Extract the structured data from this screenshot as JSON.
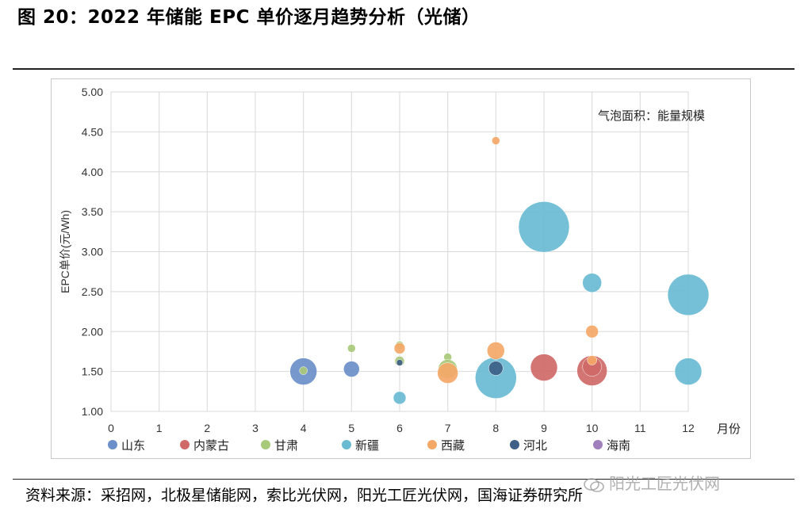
{
  "figure_title": "图 20：2022 年储能 EPC 单价逐月趋势分析（光储）",
  "source": "资料来源：采招网，北极星储能网，索比光伏网，阳光工匠光伏网，国海证券研究所",
  "watermark": "阳光工匠光伏网",
  "chart_data": {
    "type": "scatter",
    "subtype": "bubble",
    "xlabel": "月份",
    "ylabel": "EPC单价(元/Wh)",
    "annotation": "气泡面积：能量规模",
    "xlim": [
      0,
      12
    ],
    "ylim": [
      1.0,
      5.0
    ],
    "xticks": [
      "0",
      "1",
      "2",
      "3",
      "4",
      "5",
      "6",
      "7",
      "8",
      "9",
      "10",
      "11",
      "12"
    ],
    "yticks": [
      "1.00",
      "1.50",
      "2.00",
      "2.50",
      "3.00",
      "3.50",
      "4.00",
      "4.50",
      "5.00"
    ],
    "grid": true,
    "legend_position": "bottom",
    "series": [
      {
        "name": "山东",
        "color": "#6b8fc9",
        "points": [
          [
            4,
            1.5,
            17
          ],
          [
            5,
            1.53,
            10
          ]
        ]
      },
      {
        "name": "内蒙古",
        "color": "#cf6967",
        "points": [
          [
            9,
            1.55,
            17
          ],
          [
            10,
            1.51,
            19
          ],
          [
            10,
            1.56,
            12
          ]
        ]
      },
      {
        "name": "甘肃",
        "color": "#a9c97a",
        "points": [
          [
            4,
            1.51,
            5
          ],
          [
            5,
            1.79,
            5
          ],
          [
            6,
            1.83,
            5
          ],
          [
            6,
            1.63,
            6
          ],
          [
            7,
            1.68,
            5
          ],
          [
            7,
            1.53,
            12
          ]
        ]
      },
      {
        "name": "新疆",
        "color": "#69bbd2",
        "points": [
          [
            6,
            1.17,
            8
          ],
          [
            8,
            1.42,
            26
          ],
          [
            9,
            3.31,
            32
          ],
          [
            10,
            2.61,
            12
          ],
          [
            12,
            2.46,
            26
          ],
          [
            12,
            1.5,
            17
          ]
        ]
      },
      {
        "name": "西藏",
        "color": "#f4a868",
        "points": [
          [
            6,
            1.79,
            7
          ],
          [
            8,
            4.39,
            5
          ],
          [
            8,
            1.76,
            11
          ],
          [
            10,
            2.0,
            8
          ],
          [
            10,
            1.64,
            6
          ],
          [
            7,
            1.48,
            13
          ]
        ]
      },
      {
        "name": "河北",
        "color": "#3e5f86",
        "points": [
          [
            6,
            1.61,
            4
          ],
          [
            8,
            1.54,
            9
          ]
        ]
      },
      {
        "name": "海南",
        "color": "#a07fbb",
        "points": []
      }
    ]
  }
}
